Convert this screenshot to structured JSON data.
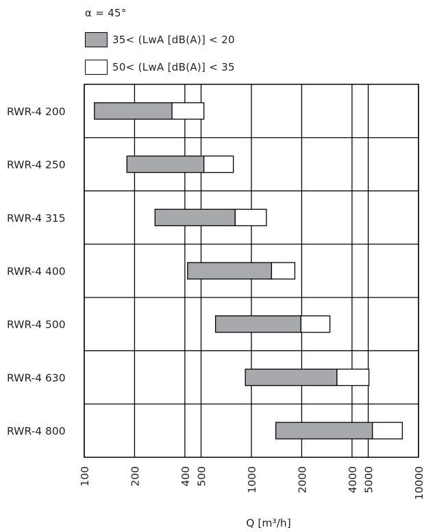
{
  "chart_data": {
    "type": "bar",
    "subtype": "floating-range-horizontal",
    "title": "α = 45°",
    "legend": [
      {
        "name": "35< (LwA [dB(A)] < 20",
        "color": "#a7a9ac"
      },
      {
        "name": "50< (LwA [dB(A)] < 35",
        "color": "#ffffff"
      }
    ],
    "categories": [
      "RWR-4 200",
      "RWR-4 250",
      "RWR-4 315",
      "RWR-4 400",
      "RWR-4 500",
      "RWR-4 630",
      "RWR-4 800"
    ],
    "series": [
      {
        "name": "35< (LwA [dB(A)] < 20",
        "ranges": [
          [
            115,
            335
          ],
          [
            180,
            520
          ],
          [
            265,
            800
          ],
          [
            415,
            1320
          ],
          [
            610,
            1980
          ],
          [
            920,
            3250
          ],
          [
            1400,
            5300
          ]
        ]
      },
      {
        "name": "50< (LwA [dB(A)] < 35",
        "ranges": [
          [
            335,
            520
          ],
          [
            520,
            780
          ],
          [
            800,
            1230
          ],
          [
            1320,
            1820
          ],
          [
            1980,
            2950
          ],
          [
            3250,
            5050
          ],
          [
            5300,
            8000
          ]
        ]
      }
    ],
    "x_scale": "log",
    "xlim": [
      100,
      10000
    ],
    "xticks": [
      "100",
      "200",
      "400",
      "500",
      "1000",
      "2000",
      "4000",
      "5000",
      "10000"
    ],
    "xlabel": "Q [m³/h]",
    "ylabel": "",
    "grid": true,
    "legend_position": "top-left"
  }
}
